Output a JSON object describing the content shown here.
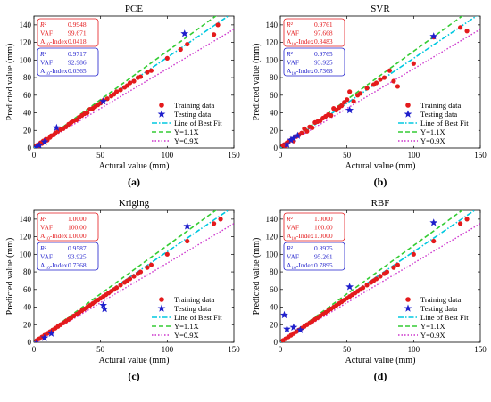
{
  "figure": {
    "common": {
      "xlabel": "Actural value (mm)",
      "ylabel": "Predicted value (mm)",
      "xlim": [
        0,
        150
      ],
      "ylim": [
        0,
        150
      ],
      "xticks": [
        0,
        50,
        100,
        150
      ],
      "yticks": [
        0,
        20,
        40,
        60,
        80,
        100,
        120,
        140
      ],
      "legend": [
        "Training data",
        "Testing data",
        "Line of Best Fit",
        "Y=1.1X",
        "Y=0.9X"
      ],
      "colors": {
        "training": "#e41a1c",
        "testing": "#1f1fcc",
        "best_fit": "#00c8e0",
        "upper": "#33cc33",
        "lower": "#cc33cc"
      }
    }
  },
  "chart_data": [
    {
      "type": "scatter",
      "title": "PCE",
      "panel_label": "(a)",
      "metric_labels": [
        "R²",
        "VAF",
        "A10-Index"
      ],
      "train_metrics": [
        "0.9948",
        "99.671",
        "0.0418"
      ],
      "test_metrics": [
        "0.9717",
        "92.986",
        "0.0365"
      ],
      "training": [
        [
          2,
          3
        ],
        [
          3,
          2
        ],
        [
          4,
          4
        ],
        [
          5,
          6
        ],
        [
          6,
          5
        ],
        [
          7,
          8
        ],
        [
          8,
          7
        ],
        [
          9,
          10
        ],
        [
          10,
          9
        ],
        [
          12,
          12
        ],
        [
          13,
          14
        ],
        [
          15,
          15
        ],
        [
          16,
          17
        ],
        [
          18,
          19
        ],
        [
          20,
          21
        ],
        [
          22,
          22
        ],
        [
          24,
          24
        ],
        [
          26,
          27
        ],
        [
          28,
          29
        ],
        [
          30,
          31
        ],
        [
          32,
          32
        ],
        [
          34,
          35
        ],
        [
          36,
          37
        ],
        [
          38,
          39
        ],
        [
          40,
          40
        ],
        [
          42,
          44
        ],
        [
          44,
          45
        ],
        [
          46,
          47
        ],
        [
          48,
          49
        ],
        [
          50,
          51
        ],
        [
          52,
          54
        ],
        [
          55,
          56
        ],
        [
          58,
          59
        ],
        [
          60,
          61
        ],
        [
          62,
          64
        ],
        [
          65,
          66
        ],
        [
          68,
          69
        ],
        [
          70,
          71
        ],
        [
          72,
          74
        ],
        [
          75,
          76
        ],
        [
          78,
          80
        ],
        [
          80,
          81
        ],
        [
          85,
          86
        ],
        [
          88,
          88
        ],
        [
          100,
          102
        ],
        [
          110,
          112
        ],
        [
          115,
          118
        ],
        [
          135,
          129
        ],
        [
          138,
          140
        ]
      ],
      "testing": [
        [
          2,
          1
        ],
        [
          4,
          3
        ],
        [
          8,
          7
        ],
        [
          17,
          23
        ],
        [
          52,
          53
        ],
        [
          113,
          130
        ]
      ],
      "best_fit_slope": 1.03
    },
    {
      "type": "scatter",
      "title": "SVR",
      "panel_label": "(b)",
      "metric_labels": [
        "R²",
        "VAF",
        "A10-Index"
      ],
      "train_metrics": [
        "0.9761",
        "97.668",
        "0.8483"
      ],
      "test_metrics": [
        "0.9765",
        "93.925",
        "0.7368"
      ],
      "training": [
        [
          2,
          3
        ],
        [
          3,
          4
        ],
        [
          4,
          2
        ],
        [
          5,
          6
        ],
        [
          6,
          7
        ],
        [
          8,
          9
        ],
        [
          10,
          8
        ],
        [
          12,
          13
        ],
        [
          14,
          15
        ],
        [
          16,
          17
        ],
        [
          18,
          22
        ],
        [
          20,
          19
        ],
        [
          22,
          24
        ],
        [
          24,
          23
        ],
        [
          26,
          29
        ],
        [
          28,
          30
        ],
        [
          30,
          31
        ],
        [
          32,
          34
        ],
        [
          34,
          36
        ],
        [
          36,
          38
        ],
        [
          38,
          37
        ],
        [
          40,
          45
        ],
        [
          42,
          43
        ],
        [
          44,
          46
        ],
        [
          46,
          48
        ],
        [
          48,
          52
        ],
        [
          50,
          55
        ],
        [
          52,
          64
        ],
        [
          55,
          53
        ],
        [
          58,
          60
        ],
        [
          60,
          62
        ],
        [
          65,
          68
        ],
        [
          70,
          72
        ],
        [
          72,
          74
        ],
        [
          75,
          78
        ],
        [
          78,
          80
        ],
        [
          82,
          88
        ],
        [
          85,
          76
        ],
        [
          88,
          70
        ],
        [
          100,
          96
        ],
        [
          115,
          126
        ],
        [
          135,
          137
        ],
        [
          140,
          133
        ]
      ],
      "testing": [
        [
          5,
          4
        ],
        [
          8,
          9
        ],
        [
          10,
          11
        ],
        [
          13,
          14
        ],
        [
          52,
          43
        ],
        [
          115,
          127
        ]
      ],
      "best_fit_slope": 1.02
    },
    {
      "type": "scatter",
      "title": "Kriging",
      "panel_label": "(c)",
      "metric_labels": [
        "R²",
        "VAF",
        "A10-Index"
      ],
      "train_metrics": [
        "1.0000",
        "100.00",
        "1.0000"
      ],
      "test_metrics": [
        "0.9587",
        "93.925",
        "0.7368"
      ],
      "training": [
        [
          2,
          2
        ],
        [
          4,
          4
        ],
        [
          6,
          6
        ],
        [
          8,
          8
        ],
        [
          10,
          10
        ],
        [
          12,
          12
        ],
        [
          14,
          14
        ],
        [
          16,
          16
        ],
        [
          18,
          18
        ],
        [
          20,
          20
        ],
        [
          22,
          22
        ],
        [
          24,
          24
        ],
        [
          26,
          26
        ],
        [
          28,
          28
        ],
        [
          30,
          30
        ],
        [
          32,
          32
        ],
        [
          34,
          34
        ],
        [
          36,
          36
        ],
        [
          38,
          38
        ],
        [
          40,
          40
        ],
        [
          42,
          42
        ],
        [
          44,
          44
        ],
        [
          46,
          46
        ],
        [
          48,
          48
        ],
        [
          50,
          50
        ],
        [
          52,
          52
        ],
        [
          54,
          54
        ],
        [
          56,
          56
        ],
        [
          58,
          58
        ],
        [
          60,
          60
        ],
        [
          62,
          62
        ],
        [
          65,
          65
        ],
        [
          68,
          68
        ],
        [
          70,
          70
        ],
        [
          72,
          72
        ],
        [
          75,
          75
        ],
        [
          78,
          78
        ],
        [
          80,
          80
        ],
        [
          85,
          85
        ],
        [
          88,
          88
        ],
        [
          100,
          100
        ],
        [
          115,
          115
        ],
        [
          135,
          135
        ],
        [
          140,
          140
        ]
      ],
      "testing": [
        [
          2,
          -1
        ],
        [
          8,
          5
        ],
        [
          13,
          10
        ],
        [
          52,
          42
        ],
        [
          53,
          38
        ],
        [
          115,
          132
        ]
      ],
      "best_fit_slope": 1.03
    },
    {
      "type": "scatter",
      "title": "RBF",
      "panel_label": "(d)",
      "metric_labels": [
        "R²",
        "VAF",
        "A10-Index"
      ],
      "train_metrics": [
        "1.0000",
        "100.00",
        "1.0000"
      ],
      "test_metrics": [
        "0.8975",
        "95.261",
        "0.7895"
      ],
      "training": [
        [
          2,
          2
        ],
        [
          4,
          4
        ],
        [
          6,
          6
        ],
        [
          8,
          8
        ],
        [
          10,
          10
        ],
        [
          12,
          12
        ],
        [
          14,
          14
        ],
        [
          16,
          16
        ],
        [
          18,
          18
        ],
        [
          20,
          20
        ],
        [
          22,
          22
        ],
        [
          24,
          24
        ],
        [
          26,
          26
        ],
        [
          28,
          28
        ],
        [
          30,
          30
        ],
        [
          32,
          32
        ],
        [
          34,
          34
        ],
        [
          36,
          36
        ],
        [
          38,
          38
        ],
        [
          40,
          40
        ],
        [
          42,
          42
        ],
        [
          44,
          44
        ],
        [
          46,
          46
        ],
        [
          48,
          48
        ],
        [
          50,
          50
        ],
        [
          52,
          52
        ],
        [
          54,
          54
        ],
        [
          56,
          56
        ],
        [
          58,
          58
        ],
        [
          60,
          60
        ],
        [
          62,
          62
        ],
        [
          65,
          65
        ],
        [
          68,
          68
        ],
        [
          70,
          70
        ],
        [
          72,
          72
        ],
        [
          75,
          75
        ],
        [
          78,
          78
        ],
        [
          80,
          80
        ],
        [
          85,
          85
        ],
        [
          88,
          88
        ],
        [
          100,
          100
        ],
        [
          115,
          115
        ],
        [
          135,
          135
        ],
        [
          140,
          140
        ]
      ],
      "testing": [
        [
          3,
          31
        ],
        [
          5,
          15
        ],
        [
          10,
          17
        ],
        [
          15,
          14
        ],
        [
          52,
          63
        ],
        [
          115,
          136
        ]
      ],
      "best_fit_slope": 1.03
    }
  ]
}
